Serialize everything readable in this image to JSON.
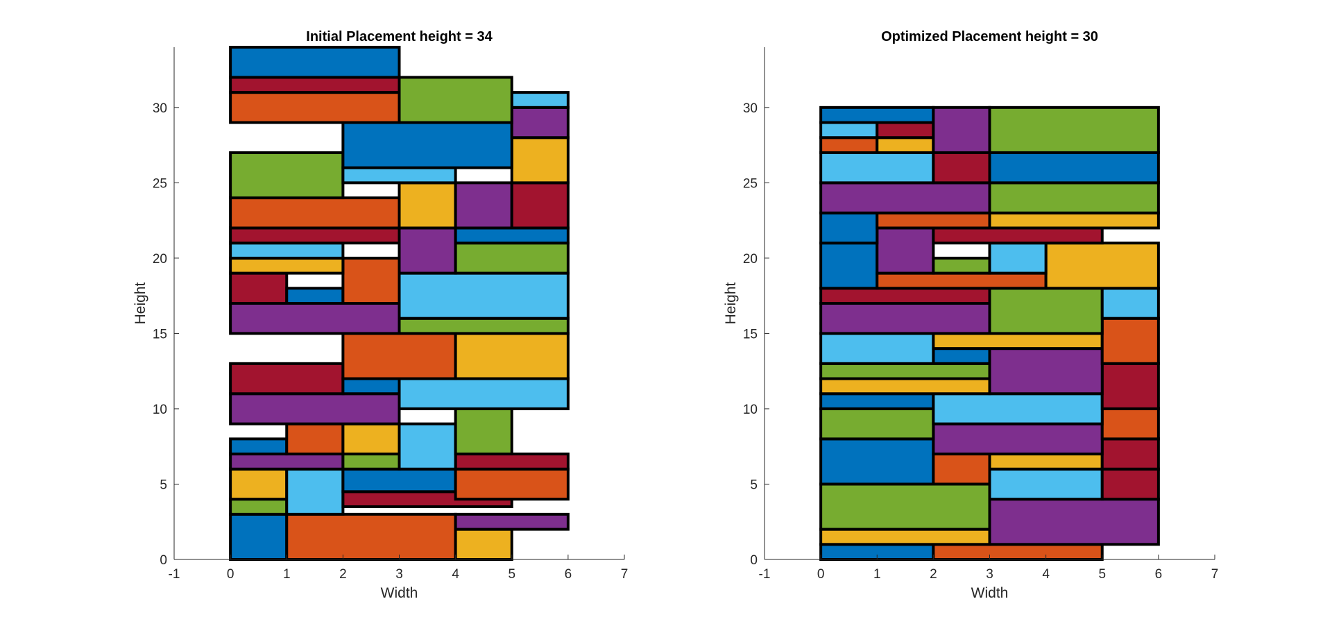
{
  "palette": {
    "blue": "#0072BD",
    "orange": "#D95319",
    "yellow": "#EDB120",
    "purple": "#7E2F8E",
    "green": "#77AC30",
    "cyan": "#4DBEEE",
    "red": "#A2142F"
  },
  "chart_data": [
    {
      "type": "rectangles",
      "title": "Initial Placement height = 34",
      "xlabel": "Width",
      "ylabel": "Height",
      "xlim": [
        -1,
        7
      ],
      "ylim": [
        0,
        34
      ],
      "xticks": [
        "-1",
        "0",
        "1",
        "2",
        "3",
        "4",
        "5",
        "6",
        "7"
      ],
      "yticks": [
        "0",
        "5",
        "10",
        "15",
        "20",
        "25",
        "30"
      ],
      "rects": [
        {
          "x": 0,
          "y": 0,
          "w": 1,
          "h": 3,
          "color": "blue"
        },
        {
          "x": 1,
          "y": 0,
          "w": 3,
          "h": 3,
          "color": "orange"
        },
        {
          "x": 4,
          "y": 0,
          "w": 1,
          "h": 2,
          "color": "yellow"
        },
        {
          "x": 4,
          "y": 2,
          "w": 2,
          "h": 1,
          "color": "purple"
        },
        {
          "x": 0,
          "y": 3,
          "w": 1,
          "h": 1,
          "color": "green"
        },
        {
          "x": 0,
          "y": 4,
          "w": 1,
          "h": 2,
          "color": "yellow"
        },
        {
          "x": 1,
          "y": 3,
          "w": 1,
          "h": 3,
          "color": "cyan"
        },
        {
          "x": 2,
          "y": 3.5,
          "w": 3,
          "h": 1,
          "color": "red"
        },
        {
          "x": 2,
          "y": 4.5,
          "w": 2,
          "h": 1.5,
          "color": "blue"
        },
        {
          "x": 4,
          "y": 4,
          "w": 2,
          "h": 2,
          "color": "orange"
        },
        {
          "x": 4,
          "y": 6,
          "w": 2,
          "h": 1,
          "color": "red"
        },
        {
          "x": 0,
          "y": 6,
          "w": 2,
          "h": 1,
          "color": "purple"
        },
        {
          "x": 0,
          "y": 7,
          "w": 1,
          "h": 1,
          "color": "blue"
        },
        {
          "x": 1,
          "y": 7,
          "w": 1,
          "h": 2,
          "color": "orange"
        },
        {
          "x": 2,
          "y": 6,
          "w": 1,
          "h": 1,
          "color": "green"
        },
        {
          "x": 2,
          "y": 7,
          "w": 1,
          "h": 2,
          "color": "yellow"
        },
        {
          "x": 3,
          "y": 6,
          "w": 1,
          "h": 3,
          "color": "cyan"
        },
        {
          "x": 4,
          "y": 7,
          "w": 1,
          "h": 3,
          "color": "green"
        },
        {
          "x": 0,
          "y": 9,
          "w": 3,
          "h": 2,
          "color": "purple"
        },
        {
          "x": 0,
          "y": 11,
          "w": 2,
          "h": 2,
          "color": "red"
        },
        {
          "x": 2,
          "y": 11,
          "w": 1,
          "h": 1,
          "color": "blue"
        },
        {
          "x": 3,
          "y": 10,
          "w": 3,
          "h": 2,
          "color": "cyan"
        },
        {
          "x": 2,
          "y": 12,
          "w": 2,
          "h": 3,
          "color": "orange"
        },
        {
          "x": 4,
          "y": 12,
          "w": 2,
          "h": 3,
          "color": "yellow"
        },
        {
          "x": 0,
          "y": 15,
          "w": 3,
          "h": 2,
          "color": "purple"
        },
        {
          "x": 3,
          "y": 15,
          "w": 3,
          "h": 1,
          "color": "green"
        },
        {
          "x": 0,
          "y": 17,
          "w": 1,
          "h": 2,
          "color": "red"
        },
        {
          "x": 1,
          "y": 17,
          "w": 1,
          "h": 1,
          "color": "blue"
        },
        {
          "x": 2,
          "y": 17,
          "w": 1,
          "h": 3,
          "color": "orange"
        },
        {
          "x": 3,
          "y": 16,
          "w": 3,
          "h": 3,
          "color": "cyan"
        },
        {
          "x": 0,
          "y": 19,
          "w": 2,
          "h": 1,
          "color": "yellow"
        },
        {
          "x": 0,
          "y": 20,
          "w": 2,
          "h": 1,
          "color": "cyan"
        },
        {
          "x": 3,
          "y": 19,
          "w": 1,
          "h": 3,
          "color": "purple"
        },
        {
          "x": 4,
          "y": 19,
          "w": 2,
          "h": 2,
          "color": "green"
        },
        {
          "x": 4,
          "y": 21,
          "w": 2,
          "h": 1,
          "color": "blue"
        },
        {
          "x": 0,
          "y": 21,
          "w": 3,
          "h": 1,
          "color": "red"
        },
        {
          "x": 0,
          "y": 22,
          "w": 3,
          "h": 2,
          "color": "orange"
        },
        {
          "x": 3,
          "y": 22,
          "w": 1,
          "h": 3,
          "color": "yellow"
        },
        {
          "x": 4,
          "y": 22,
          "w": 1,
          "h": 3,
          "color": "purple"
        },
        {
          "x": 5,
          "y": 22,
          "w": 1,
          "h": 3,
          "color": "red"
        },
        {
          "x": 0,
          "y": 24,
          "w": 2,
          "h": 3,
          "color": "green"
        },
        {
          "x": 2,
          "y": 25,
          "w": 2,
          "h": 1,
          "color": "cyan"
        },
        {
          "x": 5,
          "y": 25,
          "w": 1,
          "h": 3,
          "color": "yellow"
        },
        {
          "x": 2,
          "y": 26,
          "w": 3,
          "h": 3,
          "color": "blue"
        },
        {
          "x": 5,
          "y": 28,
          "w": 1,
          "h": 2,
          "color": "purple"
        },
        {
          "x": 5,
          "y": 30,
          "w": 1,
          "h": 1,
          "color": "cyan"
        },
        {
          "x": 0,
          "y": 29,
          "w": 3,
          "h": 2,
          "color": "orange"
        },
        {
          "x": 3,
          "y": 29,
          "w": 2,
          "h": 3,
          "color": "green"
        },
        {
          "x": 0,
          "y": 31,
          "w": 3,
          "h": 1,
          "color": "red"
        },
        {
          "x": 0,
          "y": 32,
          "w": 3,
          "h": 2,
          "color": "blue"
        }
      ]
    },
    {
      "type": "rectangles",
      "title": "Optimized Placement height = 30",
      "xlabel": "Width",
      "ylabel": "Height",
      "xlim": [
        -1,
        7
      ],
      "ylim": [
        0,
        34
      ],
      "xticks": [
        "-1",
        "0",
        "1",
        "2",
        "3",
        "4",
        "5",
        "6",
        "7"
      ],
      "yticks": [
        "0",
        "5",
        "10",
        "15",
        "20",
        "25",
        "30"
      ],
      "rects": [
        {
          "x": 0,
          "y": 0,
          "w": 2,
          "h": 1,
          "color": "blue"
        },
        {
          "x": 2,
          "y": 0,
          "w": 3,
          "h": 1,
          "color": "orange"
        },
        {
          "x": 0,
          "y": 1,
          "w": 3,
          "h": 1,
          "color": "yellow"
        },
        {
          "x": 0,
          "y": 2,
          "w": 3,
          "h": 3,
          "color": "green"
        },
        {
          "x": 3,
          "y": 1,
          "w": 3,
          "h": 3,
          "color": "purple"
        },
        {
          "x": 3,
          "y": 4,
          "w": 2,
          "h": 2,
          "color": "cyan"
        },
        {
          "x": 5,
          "y": 4,
          "w": 1,
          "h": 2,
          "color": "red"
        },
        {
          "x": 0,
          "y": 5,
          "w": 2,
          "h": 3,
          "color": "blue"
        },
        {
          "x": 2,
          "y": 5,
          "w": 1,
          "h": 2,
          "color": "orange"
        },
        {
          "x": 3,
          "y": 6,
          "w": 2,
          "h": 1,
          "color": "yellow"
        },
        {
          "x": 5,
          "y": 6,
          "w": 1,
          "h": 2,
          "color": "red"
        },
        {
          "x": 2,
          "y": 7,
          "w": 3,
          "h": 2,
          "color": "purple"
        },
        {
          "x": 5,
          "y": 8,
          "w": 1,
          "h": 2,
          "color": "orange"
        },
        {
          "x": 0,
          "y": 8,
          "w": 2,
          "h": 2,
          "color": "green"
        },
        {
          "x": 0,
          "y": 10,
          "w": 2,
          "h": 1,
          "color": "blue"
        },
        {
          "x": 2,
          "y": 9,
          "w": 3,
          "h": 2,
          "color": "cyan"
        },
        {
          "x": 5,
          "y": 10,
          "w": 1,
          "h": 3,
          "color": "red"
        },
        {
          "x": 0,
          "y": 11,
          "w": 3,
          "h": 1,
          "color": "yellow"
        },
        {
          "x": 0,
          "y": 12,
          "w": 3,
          "h": 1,
          "color": "green"
        },
        {
          "x": 3,
          "y": 11,
          "w": 2,
          "h": 3,
          "color": "purple"
        },
        {
          "x": 2,
          "y": 13,
          "w": 1,
          "h": 1,
          "color": "blue"
        },
        {
          "x": 0,
          "y": 13,
          "w": 2,
          "h": 2,
          "color": "cyan"
        },
        {
          "x": 2,
          "y": 14,
          "w": 3,
          "h": 1,
          "color": "yellow"
        },
        {
          "x": 5,
          "y": 13,
          "w": 1,
          "h": 3,
          "color": "orange"
        },
        {
          "x": 0,
          "y": 15,
          "w": 3,
          "h": 2,
          "color": "purple"
        },
        {
          "x": 3,
          "y": 15,
          "w": 2,
          "h": 3,
          "color": "green"
        },
        {
          "x": 5,
          "y": 16,
          "w": 1,
          "h": 2,
          "color": "cyan"
        },
        {
          "x": 0,
          "y": 17,
          "w": 3,
          "h": 1,
          "color": "red"
        },
        {
          "x": 0,
          "y": 18,
          "w": 1,
          "h": 3,
          "color": "blue"
        },
        {
          "x": 1,
          "y": 18,
          "w": 3,
          "h": 1,
          "color": "orange"
        },
        {
          "x": 4,
          "y": 18,
          "w": 2,
          "h": 3,
          "color": "yellow"
        },
        {
          "x": 1,
          "y": 19,
          "w": 1,
          "h": 3,
          "color": "purple"
        },
        {
          "x": 2,
          "y": 19,
          "w": 1,
          "h": 1,
          "color": "green"
        },
        {
          "x": 3,
          "y": 19,
          "w": 1,
          "h": 2,
          "color": "cyan"
        },
        {
          "x": 2,
          "y": 21,
          "w": 3,
          "h": 1,
          "color": "red"
        },
        {
          "x": 0,
          "y": 21,
          "w": 1,
          "h": 2,
          "color": "blue"
        },
        {
          "x": 1,
          "y": 22,
          "w": 2,
          "h": 1,
          "color": "orange"
        },
        {
          "x": 3,
          "y": 22,
          "w": 3,
          "h": 1,
          "color": "yellow"
        },
        {
          "x": 3,
          "y": 23,
          "w": 3,
          "h": 2,
          "color": "green"
        },
        {
          "x": 0,
          "y": 23,
          "w": 3,
          "h": 2,
          "color": "purple"
        },
        {
          "x": 0,
          "y": 25,
          "w": 2,
          "h": 2,
          "color": "cyan"
        },
        {
          "x": 2,
          "y": 25,
          "w": 1,
          "h": 2,
          "color": "red"
        },
        {
          "x": 3,
          "y": 25,
          "w": 3,
          "h": 2,
          "color": "blue"
        },
        {
          "x": 0,
          "y": 27,
          "w": 1,
          "h": 1,
          "color": "orange"
        },
        {
          "x": 1,
          "y": 27,
          "w": 1,
          "h": 1,
          "color": "yellow"
        },
        {
          "x": 0,
          "y": 28,
          "w": 1,
          "h": 1,
          "color": "cyan"
        },
        {
          "x": 1,
          "y": 28,
          "w": 1,
          "h": 1,
          "color": "red"
        },
        {
          "x": 0,
          "y": 29,
          "w": 2,
          "h": 1,
          "color": "blue"
        },
        {
          "x": 2,
          "y": 27,
          "w": 1,
          "h": 3,
          "color": "purple"
        },
        {
          "x": 3,
          "y": 27,
          "w": 3,
          "h": 3,
          "color": "green"
        }
      ]
    }
  ]
}
